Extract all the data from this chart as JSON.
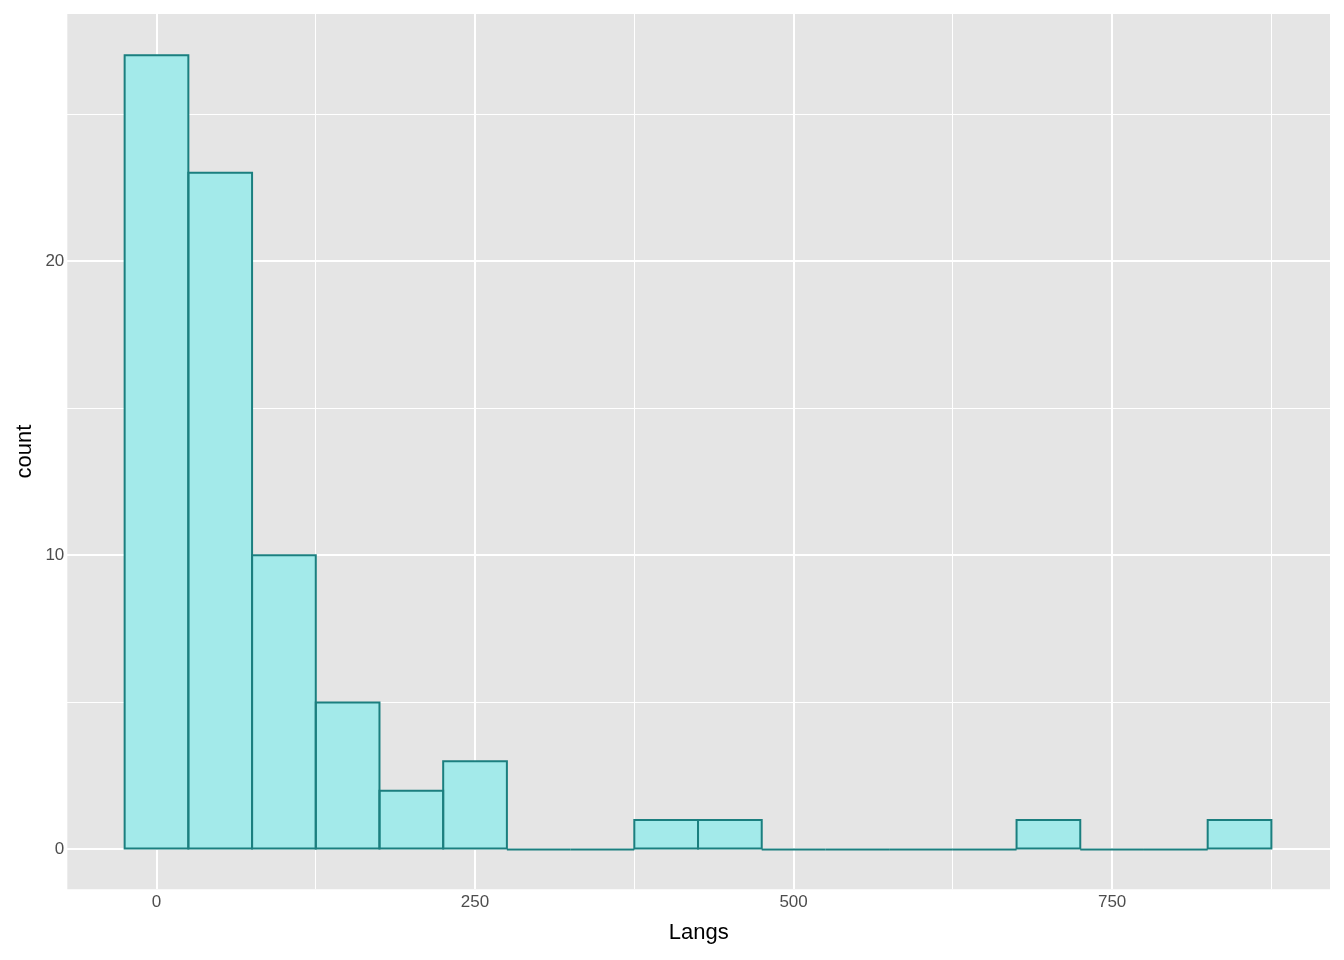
{
  "chart_data": {
    "type": "histogram",
    "xlabel": "Langs",
    "ylabel": "count",
    "bins": [
      -25,
      25,
      75,
      125,
      175,
      225,
      275,
      325,
      375,
      425,
      475,
      525,
      575,
      625,
      675,
      725,
      775,
      825,
      875
    ],
    "values": [
      27,
      23,
      10,
      5,
      2,
      3,
      0,
      0,
      1,
      1,
      0,
      0,
      0,
      0,
      1,
      0,
      0,
      1
    ],
    "color": "#a3eaea",
    "xlim": [
      -70,
      921
    ],
    "ylim": [
      -1.35,
      28.4
    ],
    "xticks": [
      0,
      {
        "value": 125,
        "label": null
      },
      250,
      {
        "value": 375,
        "label": null
      },
      500,
      {
        "value": 625,
        "label": null
      },
      750,
      {
        "value": 875,
        "label": null
      }
    ],
    "yticks": [
      0,
      {
        "value": 5,
        "label": null
      },
      10,
      {
        "value": 15,
        "label": null
      },
      20,
      {
        "value": 25,
        "label": null
      }
    ],
    "grid": true,
    "legend": false
  }
}
